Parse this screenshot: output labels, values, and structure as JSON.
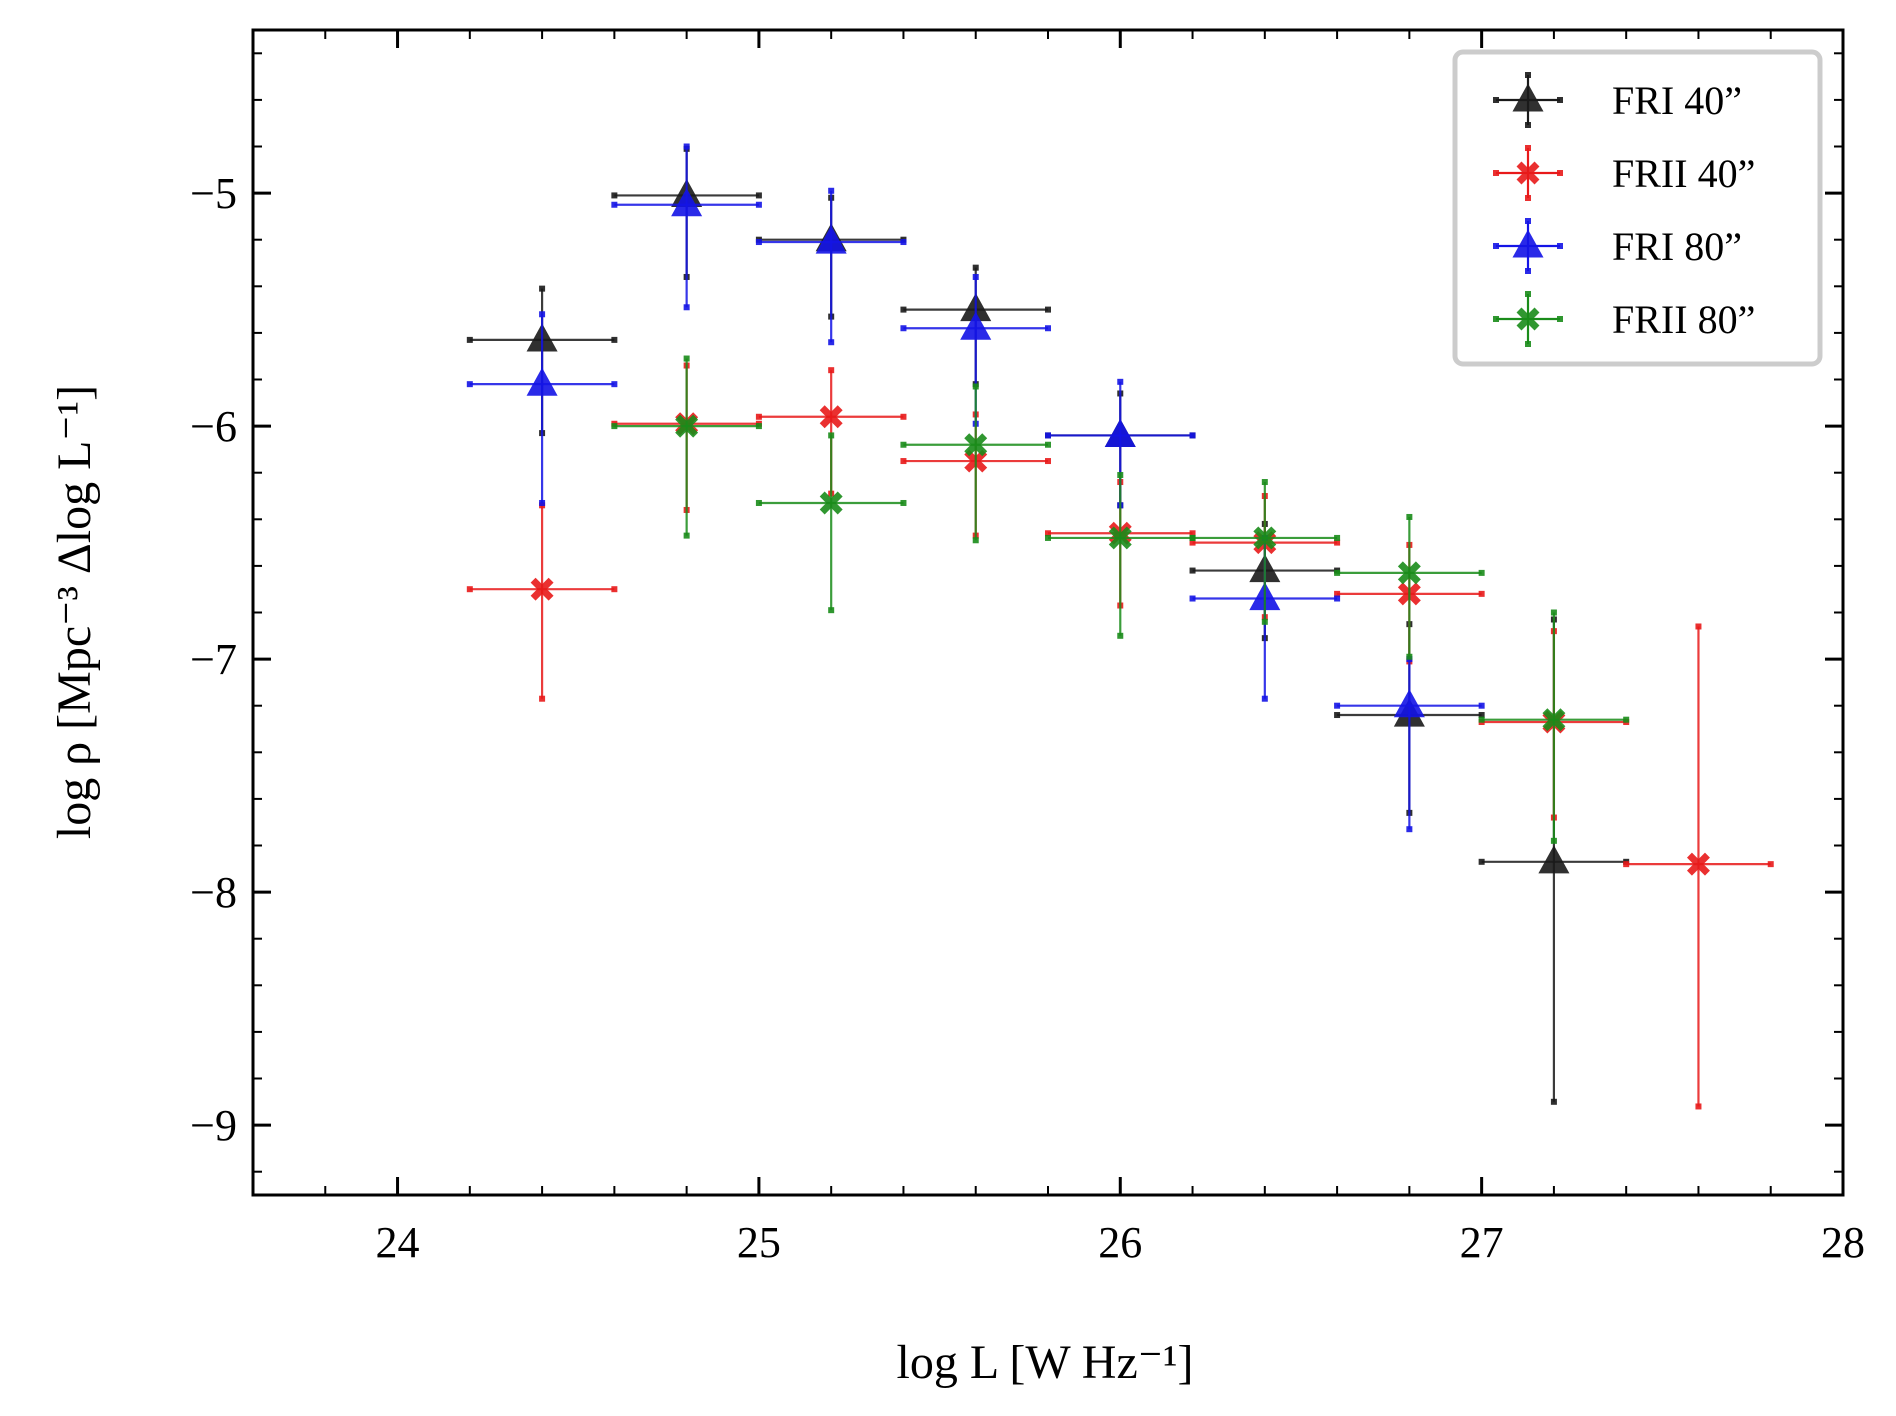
{
  "chart_data": {
    "type": "scatter",
    "xlabel": "log L [W Hz⁻¹]",
    "ylabel": "log ρ [Mpc⁻³ Δlog L⁻¹]",
    "xlim": [
      23.6,
      28.0
    ],
    "ylim": [
      -9.3,
      -4.3
    ],
    "xticks": [
      24,
      25,
      26,
      27,
      28
    ],
    "yticks": [
      -9,
      -8,
      -7,
      -6,
      -5
    ],
    "xtick_labels": [
      "24",
      "25",
      "26",
      "27",
      "28"
    ],
    "ytick_labels": [
      "−9",
      "−8",
      "−7",
      "−6",
      "−5"
    ],
    "grid": false,
    "legend_position": "top-right",
    "series": [
      {
        "name": "FRI 40”",
        "color": "#1a1a1a",
        "marker": "triangle",
        "points": [
          {
            "x": 24.4,
            "xerr": 0.2,
            "y": -5.63,
            "ylo": -6.03,
            "yhi": -5.41
          },
          {
            "x": 24.8,
            "xerr": 0.2,
            "y": -5.01,
            "ylo": -5.36,
            "yhi": -4.81
          },
          {
            "x": 25.2,
            "xerr": 0.2,
            "y": -5.2,
            "ylo": -5.53,
            "yhi": -5.02
          },
          {
            "x": 25.6,
            "xerr": 0.2,
            "y": -5.5,
            "ylo": -5.82,
            "yhi": -5.32
          },
          {
            "x": 26.0,
            "xerr": 0.2,
            "y": -6.04,
            "ylo": -6.34,
            "yhi": -5.86
          },
          {
            "x": 26.4,
            "xerr": 0.2,
            "y": -6.62,
            "ylo": -6.91,
            "yhi": -6.42
          },
          {
            "x": 26.8,
            "xerr": 0.2,
            "y": -7.24,
            "ylo": -7.66,
            "yhi": -6.85
          },
          {
            "x": 27.2,
            "xerr": 0.2,
            "y": -7.87,
            "ylo": -8.9,
            "yhi": -6.83
          }
        ]
      },
      {
        "name": "FRII 40”",
        "color": "#e8191a",
        "marker": "x",
        "points": [
          {
            "x": 24.4,
            "xerr": 0.2,
            "y": -6.7,
            "ylo": -7.17,
            "yhi": -6.34
          },
          {
            "x": 24.8,
            "xerr": 0.2,
            "y": -5.99,
            "ylo": -6.36,
            "yhi": -5.74
          },
          {
            "x": 25.2,
            "xerr": 0.2,
            "y": -5.96,
            "ylo": -6.29,
            "yhi": -5.76
          },
          {
            "x": 25.6,
            "xerr": 0.2,
            "y": -6.15,
            "ylo": -6.47,
            "yhi": -5.95
          },
          {
            "x": 26.0,
            "xerr": 0.2,
            "y": -6.46,
            "ylo": -6.77,
            "yhi": -6.24
          },
          {
            "x": 26.4,
            "xerr": 0.2,
            "y": -6.5,
            "ylo": -6.82,
            "yhi": -6.3
          },
          {
            "x": 26.8,
            "xerr": 0.2,
            "y": -6.72,
            "ylo": -7.01,
            "yhi": -6.51
          },
          {
            "x": 27.2,
            "xerr": 0.2,
            "y": -7.27,
            "ylo": -7.68,
            "yhi": -6.88
          },
          {
            "x": 27.6,
            "xerr": 0.2,
            "y": -7.88,
            "ylo": -8.92,
            "yhi": -6.86
          }
        ]
      },
      {
        "name": "FRI 80”",
        "color": "#1414e6",
        "marker": "triangle",
        "points": [
          {
            "x": 24.4,
            "xerr": 0.2,
            "y": -5.82,
            "ylo": -6.33,
            "yhi": -5.52
          },
          {
            "x": 24.8,
            "xerr": 0.2,
            "y": -5.05,
            "ylo": -5.49,
            "yhi": -4.8
          },
          {
            "x": 25.2,
            "xerr": 0.2,
            "y": -5.21,
            "ylo": -5.64,
            "yhi": -4.99
          },
          {
            "x": 25.6,
            "xerr": 0.2,
            "y": -5.58,
            "ylo": -5.99,
            "yhi": -5.36
          },
          {
            "x": 26.0,
            "xerr": 0.2,
            "y": -6.04,
            "ylo": -6.34,
            "yhi": -5.81
          },
          {
            "x": 26.4,
            "xerr": 0.2,
            "y": -6.74,
            "ylo": -7.17,
            "yhi": -6.48
          },
          {
            "x": 26.8,
            "xerr": 0.2,
            "y": -7.2,
            "ylo": -7.73,
            "yhi": -7.0
          }
        ]
      },
      {
        "name": "FRII 80”",
        "color": "#1a8c1a",
        "marker": "x",
        "points": [
          {
            "x": 24.8,
            "xerr": 0.2,
            "y": -6.0,
            "ylo": -6.47,
            "yhi": -5.71
          },
          {
            "x": 25.2,
            "xerr": 0.2,
            "y": -6.33,
            "ylo": -6.79,
            "yhi": -6.04
          },
          {
            "x": 25.6,
            "xerr": 0.2,
            "y": -6.08,
            "ylo": -6.49,
            "yhi": -5.83
          },
          {
            "x": 26.0,
            "xerr": 0.2,
            "y": -6.48,
            "ylo": -6.9,
            "yhi": -6.21
          },
          {
            "x": 26.4,
            "xerr": 0.2,
            "y": -6.48,
            "ylo": -6.84,
            "yhi": -6.24
          },
          {
            "x": 26.8,
            "xerr": 0.2,
            "y": -6.63,
            "ylo": -6.99,
            "yhi": -6.39
          },
          {
            "x": 27.2,
            "xerr": 0.2,
            "y": -7.26,
            "ylo": -7.78,
            "yhi": -6.8
          }
        ]
      }
    ]
  }
}
